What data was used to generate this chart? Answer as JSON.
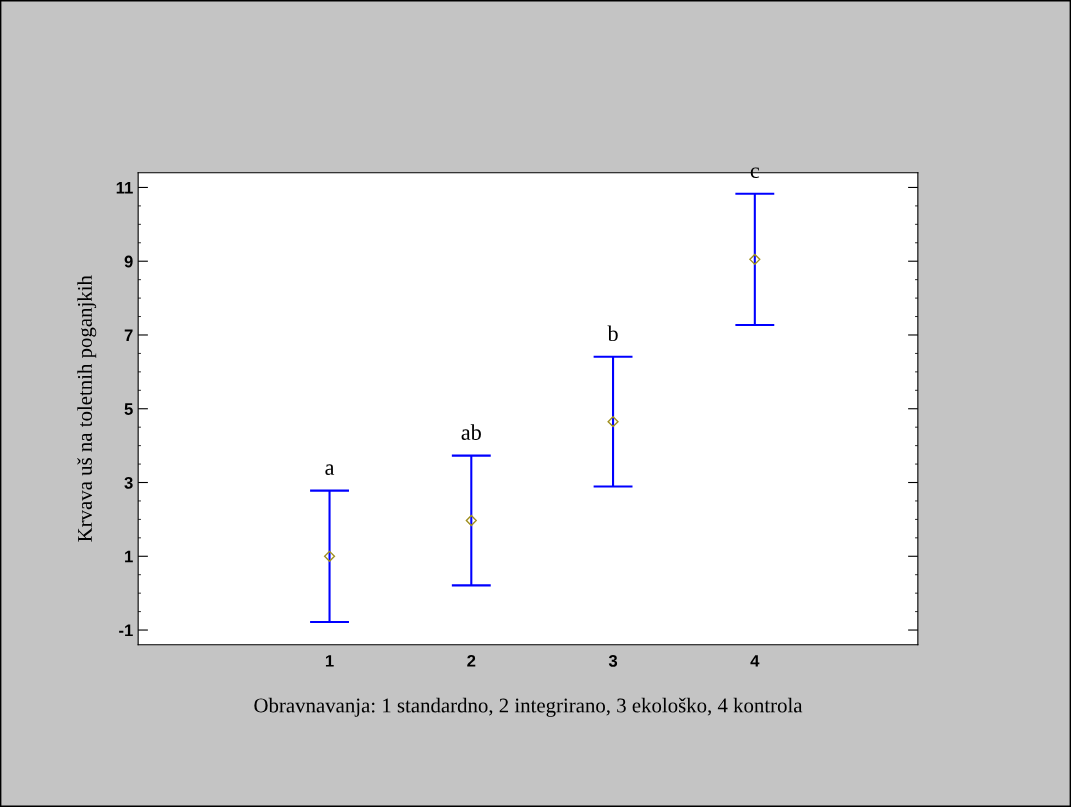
{
  "chart_data": {
    "type": "scatter",
    "xlabel": "Obravnavanja: 1 standardno, 2 integrirano, 3 ekološko, 4 kontrola",
    "ylabel": "Krvava uš na toletnih poganjkih",
    "x": [
      1,
      2,
      3,
      4
    ],
    "series": [
      {
        "color": "#a09020",
        "values": [
          1.0,
          1.97,
          4.65,
          9.05
        ],
        "errors": [
          1.78,
          1.76,
          1.76,
          1.78
        ]
      }
    ],
    "marker": "diamond",
    "grid": false,
    "legend": false,
    "xlim": [
      -0.35,
      5.15
    ],
    "xticks": [
      1,
      2,
      3,
      4
    ],
    "ylim": [
      -1.4,
      11.4
    ],
    "yticks": [
      {
        "value": -1,
        "label": "-1"
      },
      1,
      3,
      5,
      7,
      9,
      11
    ],
    "annotations": [
      "a",
      "ab",
      "b",
      "c"
    ]
  }
}
